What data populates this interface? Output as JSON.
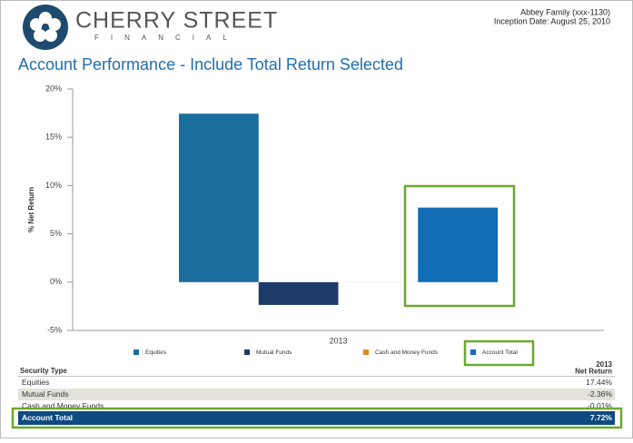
{
  "header": {
    "brand": "CHERRY STREET",
    "brand_sub": "FINANCIAL",
    "client": "Abbey Family (xxx-1130)",
    "inception": "Inception Date: August 25, 2010"
  },
  "chart_data": {
    "type": "bar",
    "title": "Account Performance - Include Total Return Selected",
    "y_label": "% Net Return",
    "categories": [
      "2013"
    ],
    "series": [
      {
        "name": "Equities",
        "color": "#1a6e9e",
        "values": [
          17.44
        ]
      },
      {
        "name": "Mutual Funds",
        "color": "#1e3a68",
        "values": [
          -2.36
        ]
      },
      {
        "name": "Cash and Money Funds",
        "color": "#e8821e",
        "values": [
          -0.01
        ]
      },
      {
        "name": "Account Total",
        "color": "#0f6cb5",
        "values": [
          7.72
        ]
      }
    ],
    "ylim": [
      -5,
      20
    ],
    "yticks": [
      {
        "value": -5,
        "label": "-5%"
      },
      {
        "value": 0,
        "label": "0%"
      },
      {
        "value": 5,
        "label": "5%"
      },
      {
        "value": 10,
        "label": "10%"
      },
      {
        "value": 15,
        "label": "15%"
      },
      {
        "value": 20,
        "label": "20%"
      }
    ],
    "grid": false
  },
  "table": {
    "header": [
      "Security Type",
      "2013",
      "Net Return"
    ],
    "rows": [
      [
        "Equities",
        "17.44%"
      ],
      [
        "Mutual Funds",
        "-2.36%"
      ],
      [
        "Cash and Money Funds",
        "-0.01%"
      ],
      [
        "Account Total",
        "7.72%"
      ]
    ]
  }
}
